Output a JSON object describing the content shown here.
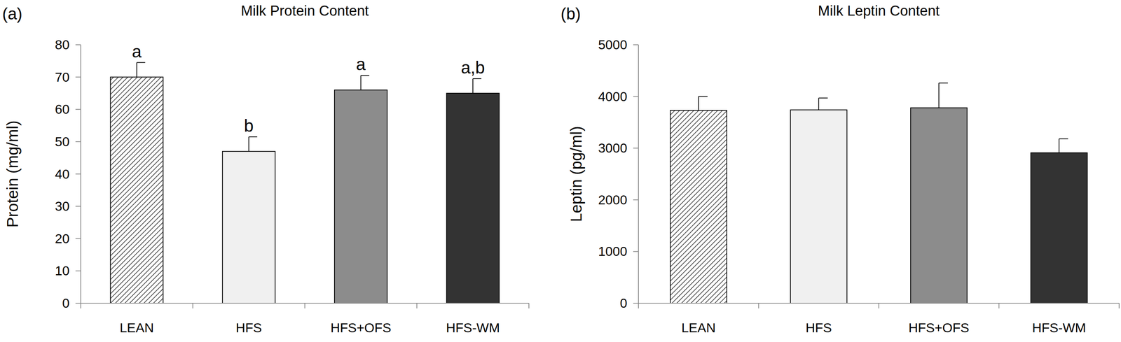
{
  "chart_data": [
    {
      "type": "bar",
      "panel": "(a)",
      "title": "Milk Protein Content",
      "y_label": "Protein (mg/ml)",
      "categories": [
        "LEAN",
        "HFS",
        "HFS+OFS",
        "HFS-WM"
      ],
      "values": [
        70,
        47,
        66,
        65
      ],
      "errors": [
        4.5,
        4.5,
        4.5,
        4.5
      ],
      "bar_labels": [
        "a",
        "b",
        "a",
        "a,b"
      ],
      "colors": [
        "#555555",
        "#f0f0f0",
        "#8c8c8c",
        "#333333"
      ],
      "ylim": [
        0,
        80
      ],
      "yticks": [
        0,
        10,
        20,
        30,
        40,
        50,
        60,
        70,
        80
      ],
      "grid": false
    },
    {
      "type": "bar",
      "panel": "(b)",
      "title": "Milk Leptin Content",
      "y_label": "Leptin (pg/ml)",
      "categories": [
        "LEAN",
        "HFS",
        "HFS+OFS",
        "HFS-WM"
      ],
      "values": [
        3730,
        3740,
        3780,
        2910
      ],
      "errors": [
        270,
        230,
        480,
        270
      ],
      "colors": [
        "#555555",
        "#f0f0f0",
        "#8c8c8c",
        "#333333"
      ],
      "ylim": [
        0,
        5000
      ],
      "yticks": [
        0,
        1000,
        2000,
        3000,
        4000,
        5000
      ],
      "grid": false
    }
  ]
}
